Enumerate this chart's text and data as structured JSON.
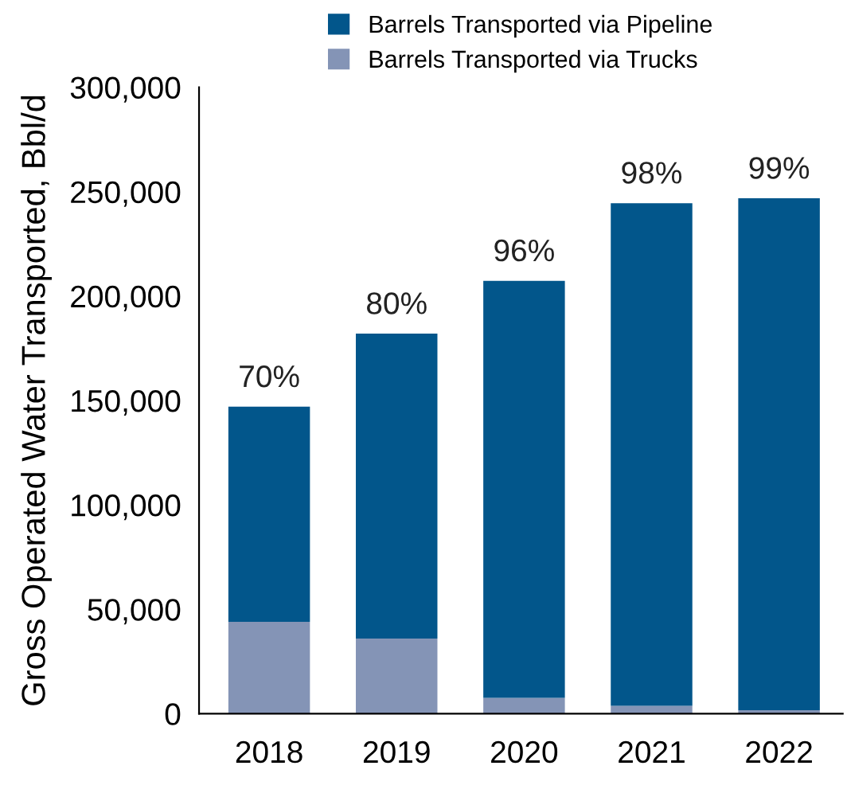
{
  "chart_data": {
    "type": "bar",
    "stacked": true,
    "ylabel": "Gross Operated Water Transported, Bbl/d",
    "categories": [
      "2018",
      "2019",
      "2020",
      "2021",
      "2022"
    ],
    "series": [
      {
        "name": "Barrels Transported via Trucks",
        "color": "#8494b6",
        "values": [
          44000,
          36000,
          7600,
          3800,
          1700
        ]
      },
      {
        "name": "Barrels Transported via Pipeline",
        "color": "#02568b",
        "values": [
          103000,
          146000,
          199700,
          240700,
          245100
        ]
      }
    ],
    "annotations": [
      {
        "text": "70%",
        "x": "2018",
        "y": 147000
      },
      {
        "text": "80%",
        "x": "2019",
        "y": 182000
      },
      {
        "text": "96%",
        "x": "2020",
        "y": 207300
      },
      {
        "text": "98%",
        "x": "2021",
        "y": 244500
      },
      {
        "text": "99%",
        "x": "2022",
        "y": 246800
      }
    ],
    "ylim": [
      0,
      300000
    ],
    "yticks": [
      {
        "value": 0,
        "label": "0"
      },
      {
        "value": 50000,
        "label": "50,000"
      },
      {
        "value": 100000,
        "label": "100,000"
      },
      {
        "value": 150000,
        "label": "150,000"
      },
      {
        "value": 200000,
        "label": "200,000"
      },
      {
        "value": 250000,
        "label": "250,000"
      },
      {
        "value": 300000,
        "label": "300,000"
      }
    ],
    "legend": "top"
  }
}
